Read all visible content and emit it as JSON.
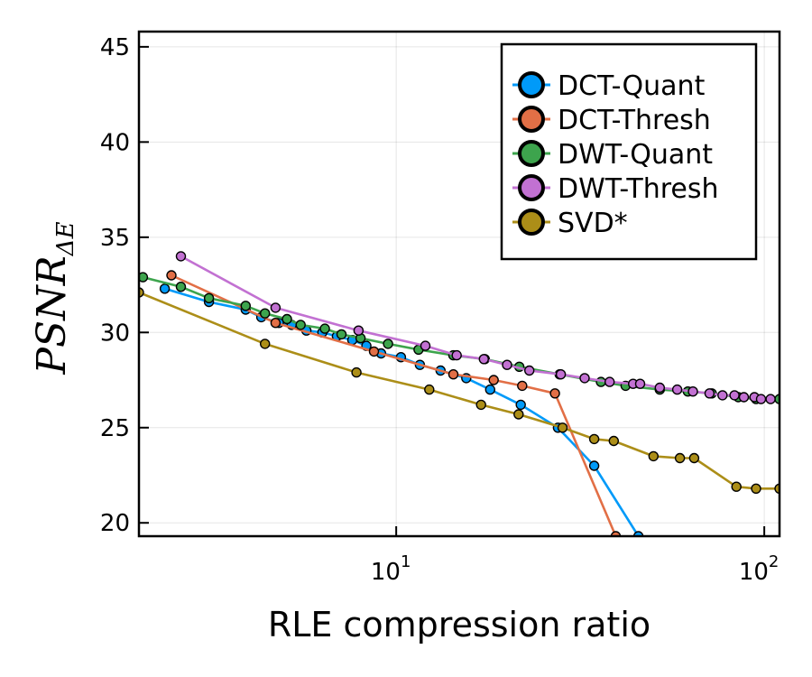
{
  "chart_data": {
    "type": "line",
    "xlabel": "RLE compression ratio",
    "ylabel": "PSNR",
    "ylabel_subscript": "ΔE",
    "xscale": "log",
    "xlim": [
      2,
      110
    ],
    "ylim": [
      19.3,
      45.8
    ],
    "xticks": [
      {
        "value": 10,
        "base": "10",
        "exp": "1"
      },
      {
        "value": 100,
        "base": "10",
        "exp": "2"
      }
    ],
    "yticks": [
      20,
      25,
      30,
      35,
      40,
      45
    ],
    "grid": true,
    "legend_position": "top-right",
    "series": [
      {
        "name": "DCT-Quant",
        "color": "#009af9",
        "x": [
          2.35,
          3.1,
          3.9,
          4.3,
          4.8,
          5.2,
          5.7,
          6.3,
          6.9,
          7.6,
          8.3,
          9.1,
          10.3,
          11.6,
          13.2,
          15.5,
          18.0,
          21.8,
          27.5,
          34.5,
          45.5
        ],
        "y": [
          32.3,
          31.6,
          31.2,
          30.8,
          30.5,
          30.4,
          30.1,
          30.0,
          29.8,
          29.6,
          29.3,
          28.9,
          28.7,
          28.3,
          28.0,
          27.6,
          27.0,
          26.2,
          25.0,
          23.0,
          19.3
        ]
      },
      {
        "name": "DCT-Thresh",
        "color": "#e26f46",
        "x": [
          2.45,
          4.7,
          8.7,
          14.3,
          18.4,
          22.0,
          27.0,
          39.5
        ],
        "y": [
          33.0,
          30.5,
          29.0,
          27.8,
          27.5,
          27.2,
          26.8,
          19.3
        ]
      },
      {
        "name": "DWT-Quant",
        "color": "#3da44d",
        "x": [
          2.05,
          2.6,
          3.1,
          3.9,
          4.4,
          5.05,
          5.5,
          6.4,
          7.1,
          8.0,
          9.5,
          11.5,
          14.3,
          17.4,
          21.6,
          27.8,
          36.0,
          42.0,
          52.0,
          62.0,
          72.0,
          85.0,
          95.0,
          110.0
        ],
        "y": [
          32.9,
          32.4,
          31.8,
          31.4,
          31.0,
          30.7,
          30.4,
          30.2,
          29.9,
          29.7,
          29.4,
          29.1,
          28.8,
          28.6,
          28.2,
          27.8,
          27.4,
          27.2,
          27.0,
          26.9,
          26.8,
          26.6,
          26.5,
          26.5
        ]
      },
      {
        "name": "DWT-Thresh",
        "color": "#c271d2",
        "x": [
          2.6,
          4.7,
          7.9,
          12.0,
          14.6,
          17.3,
          20.0,
          23.0,
          28.0,
          32.5,
          38.0,
          44.0,
          46.0,
          52.0,
          58.0,
          64.0,
          71.0,
          77.0,
          83.0,
          88.0,
          94.0,
          98.0,
          104.0
        ],
        "y": [
          34.0,
          31.3,
          30.1,
          29.3,
          28.8,
          28.6,
          28.3,
          28.0,
          27.8,
          27.6,
          27.4,
          27.3,
          27.3,
          27.1,
          27.0,
          26.9,
          26.8,
          26.7,
          26.7,
          26.6,
          26.6,
          26.5,
          26.5
        ]
      },
      {
        "name": "SVD*",
        "color": "#ac8e18",
        "x": [
          2.0,
          4.4,
          7.8,
          12.3,
          17.0,
          21.5,
          28.3,
          34.5,
          39.0,
          50.0,
          59.0,
          64.5,
          84.0,
          95.0,
          110.0
        ],
        "y": [
          32.1,
          29.4,
          27.9,
          27.0,
          26.2,
          25.7,
          25.0,
          24.4,
          24.3,
          23.5,
          23.4,
          23.4,
          21.9,
          21.8,
          21.8
        ]
      }
    ]
  }
}
